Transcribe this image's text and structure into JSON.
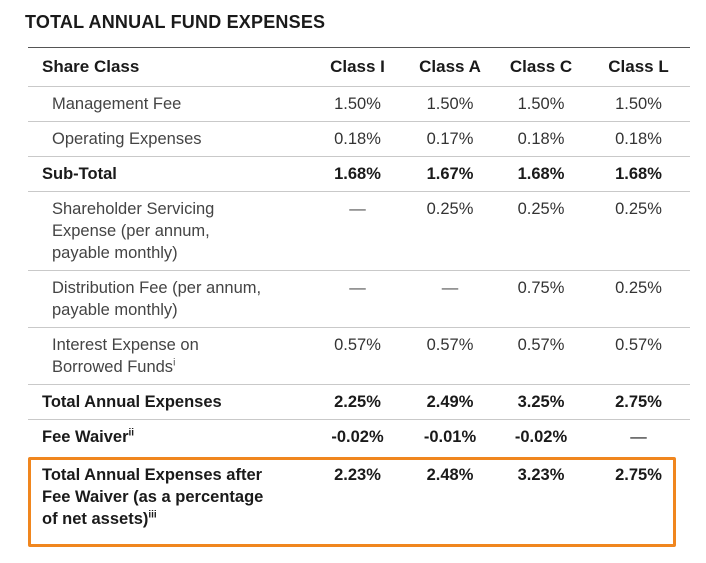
{
  "title": "TOTAL ANNUAL FUND EXPENSES",
  "accent_color": "#f0861e",
  "table": {
    "headers": [
      "Share Class",
      "Class I",
      "Class A",
      "Class C",
      "Class L"
    ],
    "rows": [
      {
        "label": "Management Fee",
        "values": [
          "1.50%",
          "1.50%",
          "1.50%",
          "1.50%"
        ]
      },
      {
        "label": "Operating Expenses",
        "values": [
          "0.18%",
          "0.17%",
          "0.18%",
          "0.18%"
        ]
      },
      {
        "label": "Sub-Total",
        "values": [
          "1.68%",
          "1.67%",
          "1.68%",
          "1.68%"
        ]
      },
      {
        "label_lines": [
          "Shareholder Servicing",
          "Expense (per annum,",
          "payable monthly)"
        ],
        "values": [
          "—",
          "0.25%",
          "0.25%",
          "0.25%"
        ]
      },
      {
        "label_lines": [
          "Distribution Fee (per annum,",
          "payable monthly)"
        ],
        "values": [
          "—",
          "—",
          "0.75%",
          "0.25%"
        ]
      },
      {
        "label_lines": [
          "Interest Expense on",
          "Borrowed Funds"
        ],
        "sup": "i",
        "values": [
          "0.57%",
          "0.57%",
          "0.57%",
          "0.57%"
        ]
      },
      {
        "label": "Total Annual Expenses",
        "values": [
          "2.25%",
          "2.49%",
          "3.25%",
          "2.75%"
        ]
      },
      {
        "label": "Fee Waiver",
        "sup": "ii",
        "values": [
          "-0.02%",
          "-0.01%",
          "-0.02%",
          "—"
        ]
      },
      {
        "label_lines": [
          "Total Annual Expenses after",
          "Fee Waiver (as a percentage",
          "of net assets)"
        ],
        "sup": "iii",
        "values": [
          "2.23%",
          "2.48%",
          "3.23%",
          "2.75%"
        ]
      }
    ]
  }
}
